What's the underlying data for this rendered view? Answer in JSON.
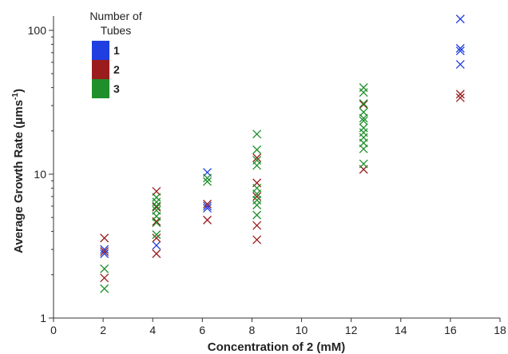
{
  "chart_data": {
    "type": "scatter",
    "x_axis": {
      "label": "Concentration of 2 (mM)",
      "range": [
        0,
        18
      ],
      "ticks": [
        "0",
        "2",
        "4",
        "6",
        "8",
        "10",
        "12",
        "14",
        "16",
        "18"
      ]
    },
    "y_axis": {
      "label_prefix": "Average Growth Rate (",
      "label_unit": "μms",
      "label_exp": "-1",
      "label_suffix": ")",
      "scale": "log",
      "range": [
        1,
        115
      ],
      "ticks": [
        "1",
        "10",
        "100"
      ]
    },
    "legend": {
      "title_line1": "Number of",
      "title_line2": "Tubes",
      "placement": "top-left",
      "entries": [
        {
          "label": "1",
          "color": "#1f3fe0"
        },
        {
          "label": "2",
          "color": "#9b1c1c"
        },
        {
          "label": "3",
          "color": "#1e8f2a"
        }
      ]
    },
    "marker": "x",
    "series": [
      {
        "name": "1",
        "color": "#1f3fe0",
        "points": [
          [
            2.05,
            3.0
          ],
          [
            2.05,
            2.8
          ],
          [
            4.15,
            3.2
          ],
          [
            6.2,
            10.3
          ],
          [
            6.2,
            6.0
          ],
          [
            6.2,
            5.8
          ],
          [
            16.4,
            120
          ],
          [
            16.4,
            75
          ],
          [
            16.4,
            72
          ],
          [
            16.4,
            58
          ]
        ]
      },
      {
        "name": "2",
        "color": "#9b1c1c",
        "points": [
          [
            2.05,
            3.6
          ],
          [
            2.05,
            2.9
          ],
          [
            2.05,
            1.9
          ],
          [
            4.15,
            7.6
          ],
          [
            4.15,
            5.9
          ],
          [
            4.15,
            4.7
          ],
          [
            4.15,
            3.6
          ],
          [
            4.15,
            2.8
          ],
          [
            6.2,
            6.2
          ],
          [
            6.2,
            4.8
          ],
          [
            8.2,
            13.0
          ],
          [
            8.2,
            8.7
          ],
          [
            8.2,
            7.0
          ],
          [
            8.2,
            4.4
          ],
          [
            8.2,
            3.5
          ],
          [
            12.5,
            30.5
          ],
          [
            12.5,
            10.8
          ],
          [
            16.4,
            36
          ],
          [
            16.4,
            34
          ]
        ]
      },
      {
        "name": "3",
        "color": "#1e8f2a",
        "points": [
          [
            2.05,
            2.2
          ],
          [
            2.05,
            1.6
          ],
          [
            4.15,
            6.9
          ],
          [
            4.15,
            6.4
          ],
          [
            4.15,
            6.0
          ],
          [
            4.15,
            5.6
          ],
          [
            4.15,
            5.1
          ],
          [
            4.15,
            4.6
          ],
          [
            4.15,
            3.8
          ],
          [
            6.2,
            9.4
          ],
          [
            6.2,
            8.9
          ],
          [
            8.2,
            19.0
          ],
          [
            8.2,
            14.8
          ],
          [
            8.2,
            12.5
          ],
          [
            8.2,
            11.5
          ],
          [
            8.2,
            8.0
          ],
          [
            8.2,
            7.3
          ],
          [
            8.2,
            6.6
          ],
          [
            8.2,
            6.1
          ],
          [
            8.2,
            5.2
          ],
          [
            12.5,
            40
          ],
          [
            12.5,
            37
          ],
          [
            12.5,
            31
          ],
          [
            12.5,
            27
          ],
          [
            12.5,
            24.5
          ],
          [
            12.5,
            23.5
          ],
          [
            12.5,
            21
          ],
          [
            12.5,
            19.5
          ],
          [
            12.5,
            18
          ],
          [
            12.5,
            16.5
          ],
          [
            12.5,
            15
          ],
          [
            12.5,
            11.8
          ]
        ]
      }
    ]
  }
}
